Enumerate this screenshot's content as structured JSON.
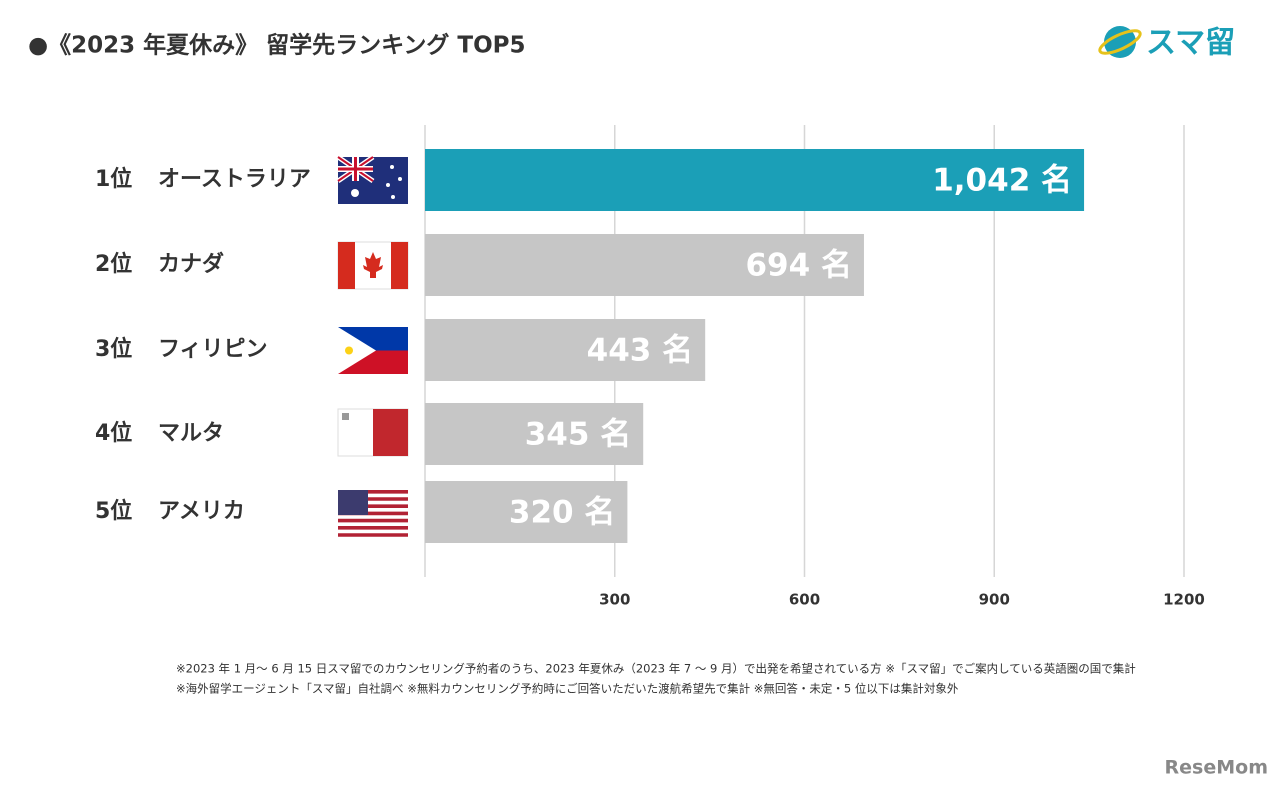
{
  "chart_data": {
    "type": "hbar",
    "title": "●《2023 年夏休み》 留学先ランキング TOP5",
    "ranks": [
      "1位",
      "2位",
      "3位",
      "4位",
      "5位"
    ],
    "categories": [
      "オーストラリア",
      "カナダ",
      "フィリピン",
      "マルタ",
      "アメリカ"
    ],
    "values": [
      1042,
      694,
      443,
      345,
      320
    ],
    "value_labels": [
      "1,042 名",
      "694 名",
      "443 名",
      "345 名",
      "320 名"
    ],
    "colors": [
      "#1b9fb7",
      "#c6c6c6",
      "#c6c6c6",
      "#c6c6c6",
      "#c6c6c6"
    ],
    "xlim": [
      0,
      1200
    ],
    "xticks": [
      300,
      600,
      900,
      1200
    ],
    "grid": true,
    "notes": [
      "※2023 年 1 月〜 6 月 15 日スマ留でのカウンセリング予約者のうち、2023 年夏休み（2023 年 7 〜 9 月）で出発を希望されている方 ※「スマ留」でご案内している英語圏の国で集計",
      "※海外留学エージェント「スマ留」自社調べ ※無料カウンセリング予約時にご回答いただいた渡航希望先で集計 ※無回答・未定・5 位以下は集計対象外"
    ],
    "logo": "スマ留",
    "watermark": "ReseMom"
  }
}
